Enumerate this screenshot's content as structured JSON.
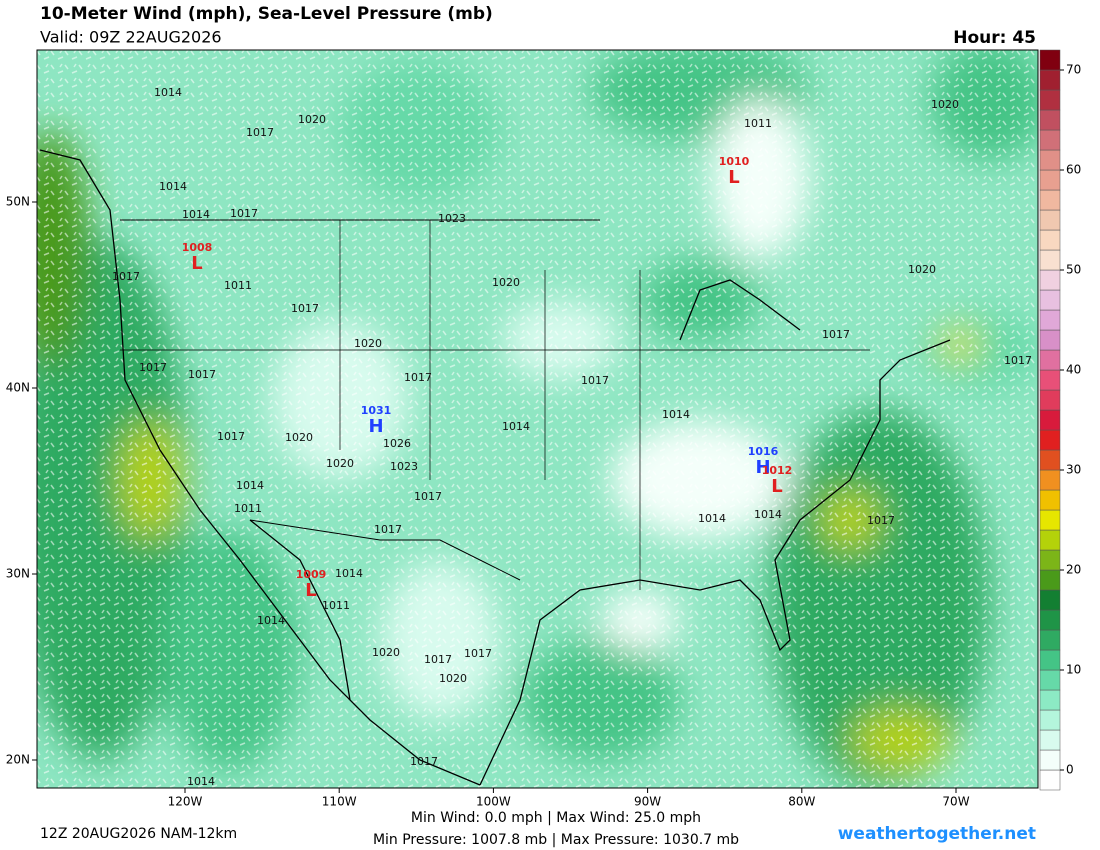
{
  "header": {
    "title": "10-Meter Wind (mph), Sea-Level Pressure (mb)",
    "valid": "Valid: 09Z 22AUG2026",
    "hour": "Hour: 45"
  },
  "colorbar": {
    "range": [
      -2,
      72
    ],
    "ticks": [
      0,
      10,
      20,
      30,
      40,
      50,
      60,
      70
    ],
    "colors": [
      "#ffffff",
      "#f4fffa",
      "#d8fbee",
      "#b4f5dc",
      "#8ceac4",
      "#66d9a8",
      "#44c486",
      "#2faa62",
      "#1f9447",
      "#137f32",
      "#4a9a1a",
      "#7cb518",
      "#b4d20a",
      "#e6e600",
      "#f0c000",
      "#f09020",
      "#e05020",
      "#e02020",
      "#d81b3c",
      "#e03c5c",
      "#e85078",
      "#e070a0",
      "#d890c8",
      "#e0a8d8",
      "#e8c0e0",
      "#f0d0e0",
      "#f8e0d0",
      "#f8d8c0",
      "#f0c8b0",
      "#f0b8a0",
      "#e8a090",
      "#e09088",
      "#d07078",
      "#c05060",
      "#b03040",
      "#a02030",
      "#800010"
    ]
  },
  "lon_ticks": [
    {
      "value": -120,
      "label": "120W"
    },
    {
      "value": -110,
      "label": "110W"
    },
    {
      "value": -100,
      "label": "100W"
    },
    {
      "value": -90,
      "label": "90W"
    },
    {
      "value": -80,
      "label": "80W"
    },
    {
      "value": -70,
      "label": "70W"
    }
  ],
  "lat_ticks": [
    {
      "value": 50,
      "label": "50N"
    },
    {
      "value": 40,
      "label": "40N"
    },
    {
      "value": 30,
      "label": "30N"
    },
    {
      "value": 20,
      "label": "20N"
    }
  ],
  "isobar_labels": [
    "1014",
    "1020",
    "1017",
    "1011",
    "1020",
    "1014",
    "1014",
    "1017",
    "1023",
    "1020",
    "1017",
    "1011",
    "1020",
    "1017",
    "1020",
    "1017",
    "1017",
    "1017",
    "1017",
    "1017",
    "1017",
    "1014",
    "1014",
    "1017",
    "1020",
    "1026",
    "1020",
    "1023",
    "1014",
    "1017",
    "1011",
    "1014",
    "1014",
    "1017",
    "1017",
    "1014",
    "1011",
    "1014",
    "1020",
    "1017",
    "1017",
    "1020",
    "1017",
    "1014"
  ],
  "centers": [
    {
      "type": "L",
      "value": "1008"
    },
    {
      "type": "L",
      "value": "1010"
    },
    {
      "type": "H",
      "value": "1031"
    },
    {
      "type": "H",
      "value": "1016"
    },
    {
      "type": "L",
      "value": "1012"
    },
    {
      "type": "L",
      "value": "1009"
    }
  ],
  "footer": {
    "model": "12Z 20AUG2026 NAM-12km",
    "wind": "Min Wind:  0.0 mph | Max Wind: 25.0 mph",
    "pressure": "Min Pressure: 1007.8 mb | Max Pressure: 1030.7 mb",
    "site": "weathertogether.net"
  }
}
